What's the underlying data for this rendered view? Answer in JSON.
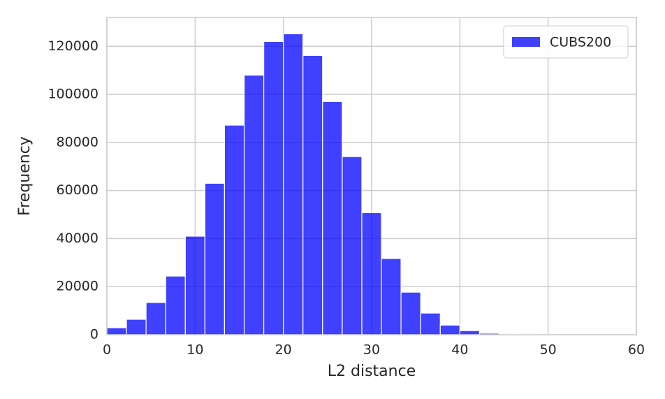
{
  "chart_data": {
    "type": "histogram",
    "xlabel": "L2 distance",
    "ylabel": "Frequency",
    "bins": [
      0,
      2.22,
      4.44,
      6.67,
      8.89,
      11.11,
      13.33,
      15.56,
      17.78,
      20,
      22.22,
      24.44,
      26.67,
      28.89,
      31.11,
      33.33,
      35.56,
      37.78,
      40,
      42.22,
      44.44,
      46.67,
      48.89,
      51.11,
      53.33,
      55.56,
      57.78,
      60
    ],
    "series": [
      {
        "name": "CUBS200",
        "color": "#0000ff",
        "values": [
          2900,
          6400,
          13400,
          24400,
          41000,
          63000,
          87200,
          108000,
          122000,
          125200,
          116200,
          97000,
          74100,
          50800,
          31700,
          17700,
          9000,
          4000,
          1700,
          600,
          300,
          100,
          50,
          20,
          10,
          5,
          2
        ]
      }
    ],
    "xlim": [
      0,
      60
    ],
    "xticks": [
      0,
      10,
      20,
      30,
      40,
      50,
      60
    ],
    "ylim": [
      0,
      132000
    ],
    "yticks": [
      0,
      20000,
      40000,
      60000,
      80000,
      100000,
      120000
    ],
    "grid": true,
    "legend": "upper right"
  }
}
